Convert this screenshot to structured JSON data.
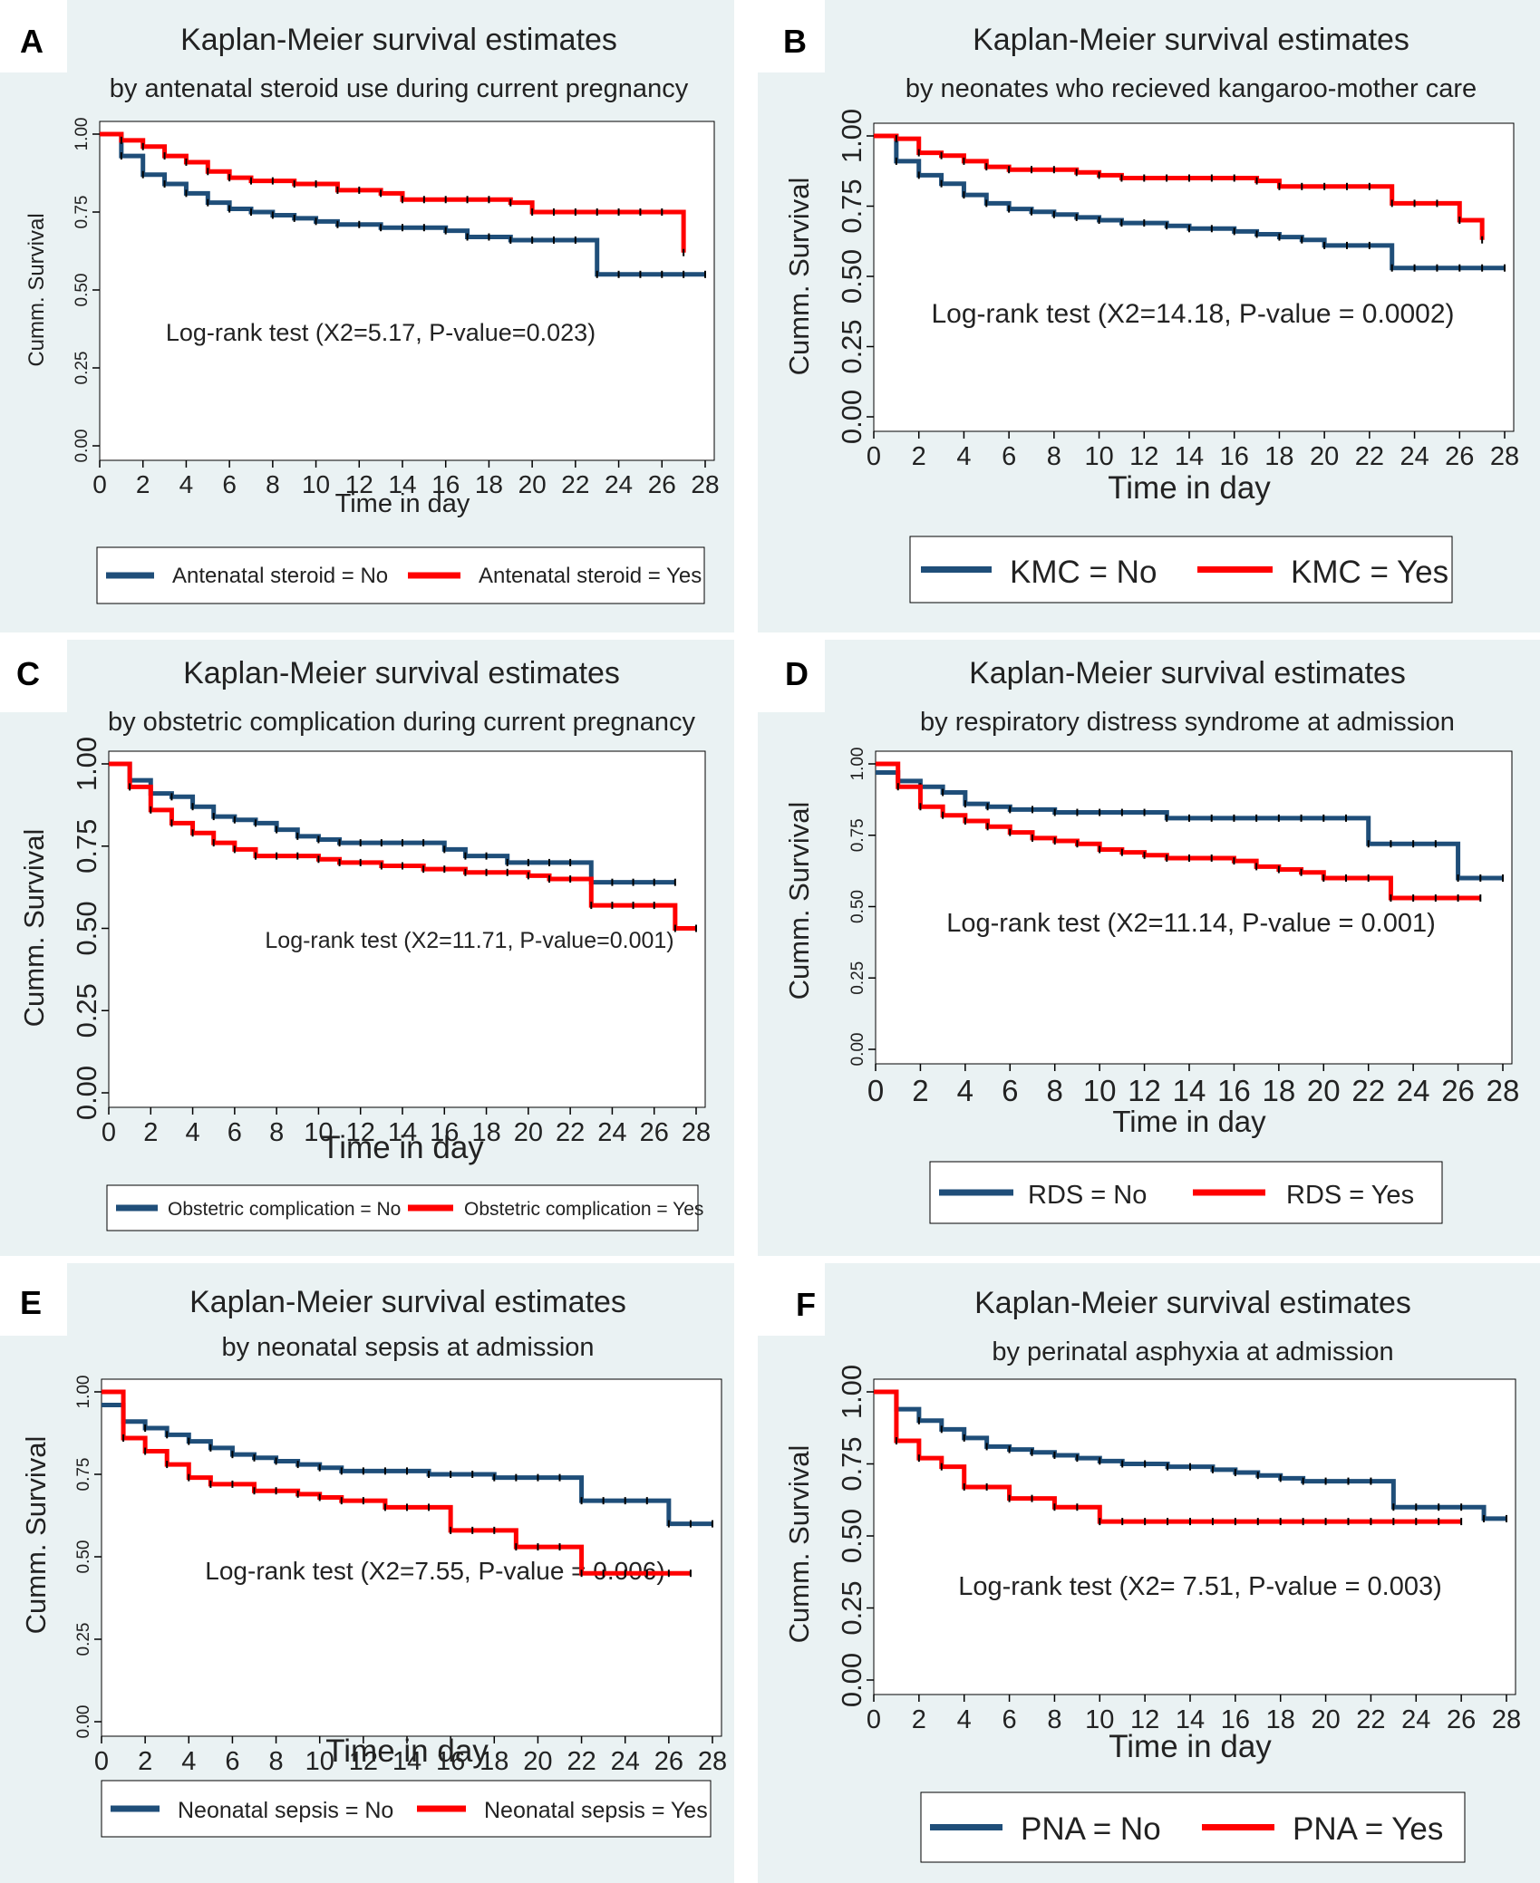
{
  "colors": {
    "no": "#1f4e79",
    "yes": "#ff0000",
    "panel_bg": "#eaf2f3"
  },
  "chart_data": [
    {
      "panel": "A",
      "type": "line",
      "title": "Kaplan-Meier survival estimates",
      "subtitle": "by antenatal steroid use during current pregnancy",
      "xlabel": "Time in day",
      "ylabel": "Cumm. Survival",
      "xticks": [
        "0",
        "2",
        "4",
        "6",
        "8",
        "10",
        "12",
        "14",
        "16",
        "18",
        "20",
        "22",
        "24",
        "26",
        "28"
      ],
      "yticks": [
        "0.00",
        "0.25",
        "0.50",
        "0.75",
        "1.00"
      ],
      "xlim": [
        0,
        28
      ],
      "ylim": [
        0,
        1
      ],
      "annotation": "Log-rank test (X2=5.17, P-value=0.023)",
      "legend": [
        "Antenatal steroid = No",
        "Antenatal steroid = Yes"
      ],
      "series": [
        {
          "name": "Antenatal steroid = No",
          "color": "no",
          "x": [
            0,
            1,
            2,
            3,
            4,
            5,
            6,
            7,
            8,
            9,
            10,
            11,
            12,
            13,
            14,
            15,
            16,
            17,
            18,
            19,
            20,
            21,
            22,
            23,
            24,
            25,
            26,
            27,
            28
          ],
          "y": [
            1.0,
            0.93,
            0.87,
            0.84,
            0.81,
            0.78,
            0.76,
            0.75,
            0.74,
            0.73,
            0.72,
            0.71,
            0.71,
            0.7,
            0.7,
            0.7,
            0.69,
            0.67,
            0.67,
            0.66,
            0.66,
            0.66,
            0.66,
            0.55,
            0.55,
            0.55,
            0.55,
            0.55,
            0.55
          ]
        },
        {
          "name": "Antenatal steroid = Yes",
          "color": "yes",
          "x": [
            0,
            1,
            2,
            3,
            4,
            5,
            6,
            7,
            8,
            9,
            10,
            11,
            12,
            13,
            14,
            15,
            16,
            17,
            18,
            19,
            20,
            21,
            22,
            23,
            24,
            25,
            26,
            27
          ],
          "y": [
            1.0,
            0.98,
            0.96,
            0.93,
            0.91,
            0.88,
            0.86,
            0.85,
            0.85,
            0.84,
            0.84,
            0.82,
            0.82,
            0.81,
            0.79,
            0.79,
            0.79,
            0.79,
            0.79,
            0.78,
            0.75,
            0.75,
            0.75,
            0.75,
            0.75,
            0.75,
            0.75,
            0.62
          ]
        }
      ]
    },
    {
      "panel": "B",
      "type": "line",
      "title": "Kaplan-Meier survival estimates",
      "subtitle": "by neonates who recieved kangaroo-mother care",
      "xlabel": "Time in day",
      "ylabel": "Cumm. Survival",
      "xticks": [
        "0",
        "2",
        "4",
        "6",
        "8",
        "10",
        "12",
        "14",
        "16",
        "18",
        "20",
        "22",
        "24",
        "26",
        "28"
      ],
      "yticks": [
        "0.00",
        "0.25",
        "0.50",
        "0.75",
        "1.00"
      ],
      "xlim": [
        0,
        28
      ],
      "ylim": [
        0,
        1
      ],
      "annotation": "Log-rank test (X2=14.18, P-value = 0.0002)",
      "legend": [
        "KMC = No",
        "KMC = Yes"
      ],
      "series": [
        {
          "name": "KMC = No",
          "color": "no",
          "x": [
            0,
            1,
            2,
            3,
            4,
            5,
            6,
            7,
            8,
            9,
            10,
            11,
            12,
            13,
            14,
            15,
            16,
            17,
            18,
            19,
            20,
            21,
            22,
            23,
            24,
            25,
            26,
            27,
            28
          ],
          "y": [
            1.0,
            0.91,
            0.86,
            0.83,
            0.79,
            0.76,
            0.74,
            0.73,
            0.72,
            0.71,
            0.7,
            0.69,
            0.69,
            0.68,
            0.67,
            0.67,
            0.66,
            0.65,
            0.64,
            0.63,
            0.61,
            0.61,
            0.61,
            0.53,
            0.53,
            0.53,
            0.53,
            0.53,
            0.53
          ]
        },
        {
          "name": "KMC = Yes",
          "color": "yes",
          "x": [
            0,
            1,
            2,
            3,
            4,
            5,
            6,
            7,
            8,
            9,
            10,
            11,
            12,
            13,
            14,
            15,
            16,
            17,
            18,
            19,
            20,
            21,
            22,
            23,
            24,
            25,
            26,
            27
          ],
          "y": [
            1.0,
            0.99,
            0.94,
            0.93,
            0.91,
            0.89,
            0.88,
            0.88,
            0.88,
            0.87,
            0.86,
            0.85,
            0.85,
            0.85,
            0.85,
            0.85,
            0.85,
            0.84,
            0.82,
            0.82,
            0.82,
            0.82,
            0.82,
            0.76,
            0.76,
            0.76,
            0.7,
            0.63
          ]
        }
      ]
    },
    {
      "panel": "C",
      "type": "line",
      "title": "Kaplan-Meier survival estimates",
      "subtitle": "by obstetric complication during current pregnancy",
      "xlabel": "Time in day",
      "ylabel": "Cumm. Survival",
      "xticks": [
        "0",
        "2",
        "4",
        "6",
        "8",
        "10",
        "12",
        "14",
        "16",
        "18",
        "20",
        "22",
        "24",
        "26",
        "28"
      ],
      "yticks": [
        "0.00",
        "0.25",
        "0.50",
        "0.75",
        "1.00"
      ],
      "xlim": [
        0,
        28
      ],
      "ylim": [
        0,
        1
      ],
      "annotation": "Log-rank test (X2=11.71, P-value=0.001)",
      "legend": [
        "Obstetric complication = No",
        "Obstetric complication = Yes"
      ],
      "series": [
        {
          "name": "Obstetric complication = No",
          "color": "no",
          "x": [
            0,
            1,
            2,
            3,
            4,
            5,
            6,
            7,
            8,
            9,
            10,
            11,
            12,
            13,
            14,
            15,
            16,
            17,
            18,
            19,
            20,
            21,
            22,
            23,
            24,
            25,
            26,
            27
          ],
          "y": [
            1.0,
            0.95,
            0.91,
            0.9,
            0.87,
            0.84,
            0.83,
            0.82,
            0.8,
            0.78,
            0.77,
            0.76,
            0.76,
            0.76,
            0.76,
            0.76,
            0.74,
            0.72,
            0.72,
            0.7,
            0.7,
            0.7,
            0.7,
            0.64,
            0.64,
            0.64,
            0.64,
            0.64
          ]
        },
        {
          "name": "Obstetric complication = Yes",
          "color": "yes",
          "x": [
            0,
            1,
            2,
            3,
            4,
            5,
            6,
            7,
            8,
            9,
            10,
            11,
            12,
            13,
            14,
            15,
            16,
            17,
            18,
            19,
            20,
            21,
            22,
            23,
            24,
            25,
            26,
            27,
            28
          ],
          "y": [
            1.0,
            0.93,
            0.86,
            0.82,
            0.79,
            0.76,
            0.74,
            0.72,
            0.72,
            0.72,
            0.71,
            0.7,
            0.7,
            0.69,
            0.69,
            0.68,
            0.68,
            0.67,
            0.67,
            0.67,
            0.66,
            0.65,
            0.65,
            0.57,
            0.57,
            0.57,
            0.57,
            0.5,
            0.5
          ]
        }
      ]
    },
    {
      "panel": "D",
      "type": "line",
      "title": "Kaplan-Meier survival estimates",
      "subtitle": "by respiratory distress syndrome at admission",
      "xlabel": "Time in day",
      "ylabel": "Cumm. Survival",
      "xticks": [
        "0",
        "2",
        "4",
        "6",
        "8",
        "10",
        "12",
        "14",
        "16",
        "18",
        "20",
        "22",
        "24",
        "26",
        "28"
      ],
      "yticks": [
        "0.00",
        "0.25",
        "0.50",
        "0.75",
        "1.00"
      ],
      "xlim": [
        0,
        28
      ],
      "ylim": [
        0,
        1
      ],
      "annotation": "Log-rank test (X2=11.14, P-value = 0.001)",
      "legend": [
        "RDS = No",
        "RDS = Yes"
      ],
      "series": [
        {
          "name": "RDS = No",
          "color": "no",
          "x": [
            0,
            1,
            2,
            3,
            4,
            5,
            6,
            7,
            8,
            9,
            10,
            11,
            12,
            13,
            14,
            15,
            16,
            17,
            18,
            19,
            20,
            21,
            22,
            23,
            24,
            25,
            26,
            27,
            28
          ],
          "y": [
            0.97,
            0.94,
            0.92,
            0.9,
            0.86,
            0.85,
            0.84,
            0.84,
            0.83,
            0.83,
            0.83,
            0.83,
            0.83,
            0.81,
            0.81,
            0.81,
            0.81,
            0.81,
            0.81,
            0.81,
            0.81,
            0.81,
            0.72,
            0.72,
            0.72,
            0.72,
            0.6,
            0.6,
            0.6
          ]
        },
        {
          "name": "RDS = Yes",
          "color": "yes",
          "x": [
            0,
            1,
            2,
            3,
            4,
            5,
            6,
            7,
            8,
            9,
            10,
            11,
            12,
            13,
            14,
            15,
            16,
            17,
            18,
            19,
            20,
            21,
            22,
            23,
            24,
            25,
            26,
            27
          ],
          "y": [
            1.0,
            0.92,
            0.85,
            0.82,
            0.8,
            0.78,
            0.76,
            0.74,
            0.73,
            0.72,
            0.7,
            0.69,
            0.68,
            0.67,
            0.67,
            0.67,
            0.66,
            0.64,
            0.63,
            0.62,
            0.6,
            0.6,
            0.6,
            0.53,
            0.53,
            0.53,
            0.53,
            0.53
          ]
        }
      ]
    },
    {
      "panel": "E",
      "type": "line",
      "title": "Kaplan-Meier survival estimates",
      "subtitle": "by neonatal sepsis at admission",
      "xlabel": "Time in day",
      "ylabel": "Cumm. Survival",
      "xticks": [
        "0",
        "2",
        "4",
        "6",
        "8",
        "10",
        "12",
        "14",
        "16",
        "18",
        "20",
        "22",
        "24",
        "26",
        "28"
      ],
      "yticks": [
        "0.00",
        "0.25",
        "0.50",
        "0.75",
        "1.00"
      ],
      "xlim": [
        0,
        28
      ],
      "ylim": [
        0,
        1
      ],
      "annotation": "Log-rank test (X2=7.55, P-value = 0.006)",
      "legend": [
        "Neonatal sepsis = No",
        "Neonatal sepsis = Yes"
      ],
      "series": [
        {
          "name": "Neonatal sepsis = No",
          "color": "no",
          "x": [
            0,
            1,
            2,
            3,
            4,
            5,
            6,
            7,
            8,
            9,
            10,
            11,
            12,
            13,
            14,
            15,
            16,
            17,
            18,
            19,
            20,
            21,
            22,
            23,
            24,
            25,
            26,
            27,
            28
          ],
          "y": [
            0.96,
            0.91,
            0.89,
            0.87,
            0.85,
            0.83,
            0.81,
            0.8,
            0.79,
            0.78,
            0.77,
            0.76,
            0.76,
            0.76,
            0.76,
            0.75,
            0.75,
            0.75,
            0.74,
            0.74,
            0.74,
            0.74,
            0.67,
            0.67,
            0.67,
            0.67,
            0.6,
            0.6,
            0.6
          ]
        },
        {
          "name": "Neonatal sepsis = Yes",
          "color": "yes",
          "x": [
            0,
            1,
            2,
            3,
            4,
            5,
            6,
            7,
            8,
            9,
            10,
            11,
            12,
            13,
            14,
            15,
            16,
            17,
            18,
            19,
            20,
            21,
            22,
            23,
            24,
            25,
            26,
            27
          ],
          "y": [
            1.0,
            0.86,
            0.82,
            0.78,
            0.74,
            0.72,
            0.72,
            0.7,
            0.7,
            0.69,
            0.68,
            0.67,
            0.67,
            0.65,
            0.65,
            0.65,
            0.58,
            0.58,
            0.58,
            0.53,
            0.53,
            0.53,
            0.45,
            0.45,
            0.45,
            0.45,
            0.45,
            0.45
          ]
        }
      ]
    },
    {
      "panel": "F",
      "type": "line",
      "title": "Kaplan-Meier survival estimates",
      "subtitle": "by perinatal asphyxia at admission",
      "xlabel": "Time in day",
      "ylabel": "Cumm. Survival",
      "xticks": [
        "0",
        "2",
        "4",
        "6",
        "8",
        "10",
        "12",
        "14",
        "16",
        "18",
        "20",
        "22",
        "24",
        "26",
        "28"
      ],
      "yticks": [
        "0.00",
        "0.25",
        "0.50",
        "0.75",
        "1.00"
      ],
      "xlim": [
        0,
        28
      ],
      "ylim": [
        0,
        1
      ],
      "annotation": "Log-rank test (X2= 7.51, P-value = 0.003)",
      "legend": [
        "PNA = No",
        "PNA = Yes"
      ],
      "series": [
        {
          "name": "PNA = No",
          "color": "no",
          "x": [
            0,
            1,
            2,
            3,
            4,
            5,
            6,
            7,
            8,
            9,
            10,
            11,
            12,
            13,
            14,
            15,
            16,
            17,
            18,
            19,
            20,
            21,
            22,
            23,
            24,
            25,
            26,
            27,
            28
          ],
          "y": [
            1.0,
            0.94,
            0.9,
            0.87,
            0.84,
            0.81,
            0.8,
            0.79,
            0.78,
            0.77,
            0.76,
            0.75,
            0.75,
            0.74,
            0.74,
            0.73,
            0.72,
            0.71,
            0.7,
            0.69,
            0.69,
            0.69,
            0.69,
            0.6,
            0.6,
            0.6,
            0.6,
            0.56,
            0.56
          ]
        },
        {
          "name": "PNA = Yes",
          "color": "yes",
          "x": [
            0,
            1,
            2,
            3,
            4,
            5,
            6,
            7,
            8,
            9,
            10,
            11,
            12,
            13,
            14,
            15,
            16,
            17,
            18,
            19,
            20,
            21,
            22,
            23,
            24,
            25,
            26
          ],
          "y": [
            1.0,
            0.83,
            0.77,
            0.74,
            0.67,
            0.67,
            0.63,
            0.63,
            0.6,
            0.6,
            0.55,
            0.55,
            0.55,
            0.55,
            0.55,
            0.55,
            0.55,
            0.55,
            0.55,
            0.55,
            0.55,
            0.55,
            0.55,
            0.55,
            0.55,
            0.55,
            0.55
          ]
        }
      ]
    }
  ]
}
